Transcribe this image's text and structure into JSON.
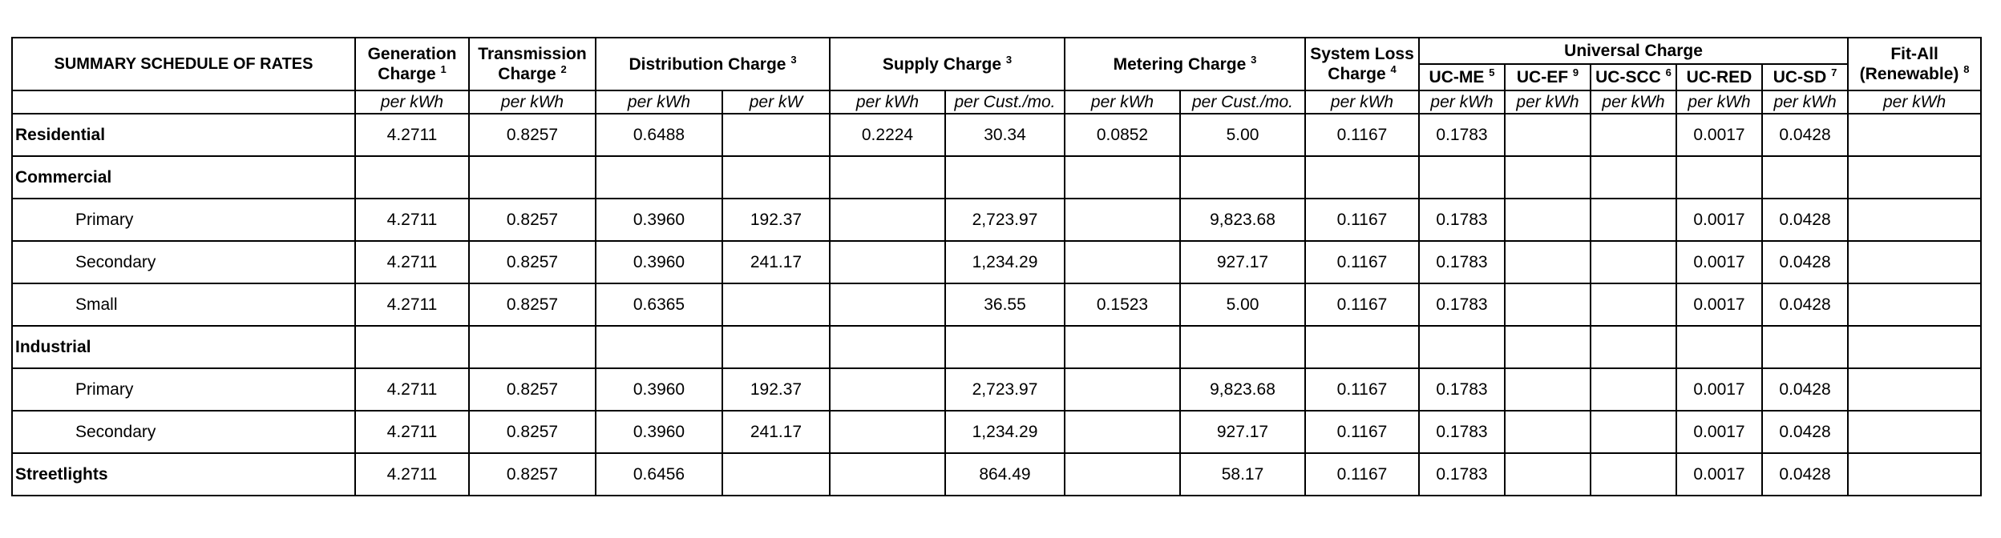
{
  "table": {
    "title": "SUMMARY SCHEDULE OF RATES",
    "headers": {
      "generation": {
        "line1": "Generation",
        "line2": "Charge",
        "note": "1"
      },
      "transmission": {
        "line1": "Transmission",
        "line2": "Charge",
        "note": "2"
      },
      "distribution": {
        "label": "Distribution Charge",
        "note": "3"
      },
      "supply": {
        "label": "Supply Charge",
        "note": "3"
      },
      "metering": {
        "label": "Metering Charge",
        "note": "3"
      },
      "system_loss": {
        "line1": "System Loss",
        "line2": "Charge",
        "note": "4"
      },
      "universal": {
        "label": "Universal Charge"
      },
      "uc_me": {
        "label": "UC-ME",
        "note": "5"
      },
      "uc_ef": {
        "label": "UC-EF",
        "note": "9"
      },
      "uc_scc": {
        "label": "UC-SCC",
        "note": "6"
      },
      "uc_red": {
        "label": "UC-RED"
      },
      "uc_sd": {
        "label": "UC-SD",
        "note": "7"
      },
      "fit_all": {
        "line1": "Fit-All",
        "line2": "(Renewable)",
        "note": "8"
      }
    },
    "units": [
      "per kWh",
      "per kWh",
      "per kWh",
      "per kW",
      "per kWh",
      "per Cust./mo.",
      "per kWh",
      "per Cust./mo.",
      "per kWh",
      "per kWh",
      "per kWh",
      "per kWh",
      "per kWh",
      "per kWh",
      "per kWh"
    ],
    "rows": [
      {
        "label": "Residential",
        "type": "group",
        "cells": [
          "4.2711",
          "0.8257",
          "0.6488",
          "",
          "0.2224",
          "30.34",
          "0.0852",
          "5.00",
          "0.1167",
          "0.1783",
          "",
          "",
          "0.0017",
          "0.0428",
          ""
        ]
      },
      {
        "label": "Commercial",
        "type": "group",
        "cells": [
          "",
          "",
          "",
          "",
          "",
          "",
          "",
          "",
          "",
          "",
          "",
          "",
          "",
          "",
          ""
        ]
      },
      {
        "label": "Primary",
        "type": "sub",
        "cells": [
          "4.2711",
          "0.8257",
          "0.3960",
          "192.37",
          "",
          "2,723.97",
          "",
          "9,823.68",
          "0.1167",
          "0.1783",
          "",
          "",
          "0.0017",
          "0.0428",
          ""
        ]
      },
      {
        "label": "Secondary",
        "type": "sub",
        "cells": [
          "4.2711",
          "0.8257",
          "0.3960",
          "241.17",
          "",
          "1,234.29",
          "",
          "927.17",
          "0.1167",
          "0.1783",
          "",
          "",
          "0.0017",
          "0.0428",
          ""
        ]
      },
      {
        "label": "Small",
        "type": "sub",
        "cells": [
          "4.2711",
          "0.8257",
          "0.6365",
          "",
          "",
          "36.55",
          "0.1523",
          "5.00",
          "0.1167",
          "0.1783",
          "",
          "",
          "0.0017",
          "0.0428",
          ""
        ]
      },
      {
        "label": "Industrial",
        "type": "group",
        "cells": [
          "",
          "",
          "",
          "",
          "",
          "",
          "",
          "",
          "",
          "",
          "",
          "",
          "",
          "",
          ""
        ]
      },
      {
        "label": "Primary",
        "type": "sub",
        "cells": [
          "4.2711",
          "0.8257",
          "0.3960",
          "192.37",
          "",
          "2,723.97",
          "",
          "9,823.68",
          "0.1167",
          "0.1783",
          "",
          "",
          "0.0017",
          "0.0428",
          ""
        ]
      },
      {
        "label": "Secondary",
        "type": "sub",
        "cells": [
          "4.2711",
          "0.8257",
          "0.3960",
          "241.17",
          "",
          "1,234.29",
          "",
          "927.17",
          "0.1167",
          "0.1783",
          "",
          "",
          "0.0017",
          "0.0428",
          ""
        ]
      },
      {
        "label": "Streetlights",
        "type": "group",
        "cells": [
          "4.2711",
          "0.8257",
          "0.6456",
          "",
          "",
          "864.49",
          "",
          "58.17",
          "0.1167",
          "0.1783",
          "",
          "",
          "0.0017",
          "0.0428",
          ""
        ]
      }
    ]
  }
}
